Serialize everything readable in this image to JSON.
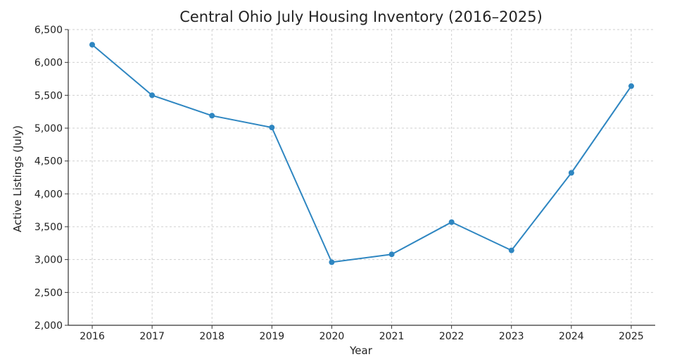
{
  "chart_data": {
    "type": "line",
    "title": "Central Ohio July Housing Inventory (2016–2025)",
    "xlabel": "Year",
    "ylabel": "Active Listings (July)",
    "x": [
      2016,
      2017,
      2018,
      2019,
      2020,
      2021,
      2022,
      2023,
      2024,
      2025
    ],
    "series": [
      {
        "values": [
          6270,
          5500,
          5190,
          5010,
          2960,
          3080,
          3570,
          3140,
          4320,
          5640
        ],
        "color": "#2e86c1"
      }
    ],
    "ylim": [
      2000,
      6500
    ],
    "xlim": [
      2015.6,
      2025.4
    ],
    "yticks": [
      2000,
      2500,
      3000,
      3500,
      4000,
      4500,
      5000,
      5500,
      6000,
      6500
    ],
    "ytick_labels": [
      "2,000",
      "2,500",
      "3,000",
      "3,500",
      "4,000",
      "4,500",
      "5,000",
      "5,500",
      "6,000",
      "6,500"
    ],
    "xticks": [
      2016,
      2017,
      2018,
      2019,
      2020,
      2021,
      2022,
      2023,
      2024,
      2025
    ],
    "xtick_labels": [
      "2016",
      "2017",
      "2018",
      "2019",
      "2020",
      "2021",
      "2022",
      "2023",
      "2024",
      "2025"
    ],
    "grid": true,
    "markers": true
  }
}
